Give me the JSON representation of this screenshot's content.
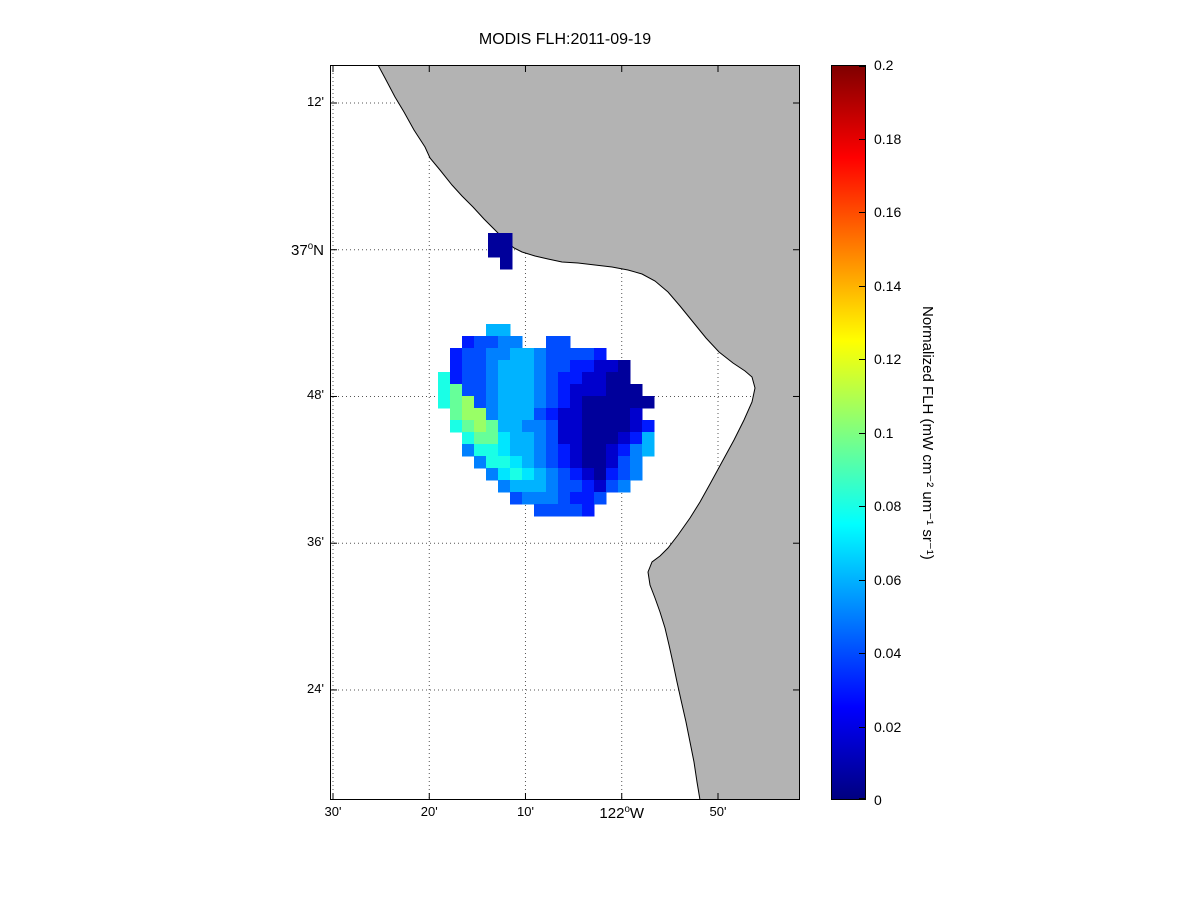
{
  "chart_data": {
    "type": "heatmap",
    "title": "MODIS FLH:2011-09-19",
    "colorbar_label": "Normalized FLH (mW cm⁻² um⁻¹ sr⁻¹)",
    "colormap": "jet",
    "clim": [
      0,
      0.2
    ],
    "xlim_lon": [
      -122.5052,
      -121.6913
    ],
    "ylim_lat": [
      36.25,
      37.2518
    ],
    "grid": "dotted",
    "land_color": "#b3b3b3",
    "ocean_color": "#ffffff",
    "xticks": [
      {
        "lon": -122.5,
        "pre": "30'",
        "sup": "",
        "post": "",
        "major": false
      },
      {
        "lon": -122.3333,
        "pre": "20'",
        "sup": "",
        "post": "",
        "major": false
      },
      {
        "lon": -122.1667,
        "pre": "10'",
        "sup": "",
        "post": "",
        "major": false
      },
      {
        "lon": -122.0,
        "pre": "122",
        "sup": "o",
        "post": "W",
        "major": true
      },
      {
        "lon": -121.8333,
        "pre": "50'",
        "sup": "",
        "post": "",
        "major": false
      }
    ],
    "yticks": [
      {
        "lat": 37.2,
        "pre": "12'",
        "sup": "",
        "post": "",
        "major": false
      },
      {
        "lat": 37.0,
        "pre": "37",
        "sup": "o",
        "post": "N",
        "major": true
      },
      {
        "lat": 36.8,
        "pre": "48'",
        "sup": "",
        "post": "",
        "major": false
      },
      {
        "lat": 36.6,
        "pre": "36'",
        "sup": "",
        "post": "",
        "major": false
      },
      {
        "lat": 36.4,
        "pre": "24'",
        "sup": "",
        "post": "",
        "major": false
      }
    ],
    "colorbar_ticks": [
      "0.2",
      "0.18",
      "0.16",
      "0.14",
      "0.12",
      "0.1",
      "0.08",
      "0.06",
      "0.04",
      "0.02",
      "0"
    ],
    "palette": {
      "1": {
        "value": 0.005,
        "color": "#00009b"
      },
      "2": {
        "value": 0.015,
        "color": "#0000cd"
      },
      "3": {
        "value": 0.03,
        "color": "#001aff"
      },
      "4": {
        "value": 0.04,
        "color": "#004dff"
      },
      "5": {
        "value": 0.05,
        "color": "#0080ff"
      },
      "6": {
        "value": 0.06,
        "color": "#00b3ff"
      },
      "7": {
        "value": 0.07,
        "color": "#00e6ff"
      },
      "8": {
        "value": 0.08,
        "color": "#1affe6"
      },
      "9": {
        "value": 0.095,
        "color": "#66ff99"
      },
      "a": {
        "value": 0.105,
        "color": "#99ff66"
      }
    },
    "heatmap_blocks": [
      {
        "name": "offshore-bloom",
        "origin_lon": -122.3182,
        "origin_lat": 36.8988,
        "dlon": 0.020779,
        "dlat": 0.016355,
        "rows": [
          "....66............",
          "..34455..44.......",
          ".3445566544443....",
          ".344566654433221..",
          "8344566654332211..",
          "89445666543222111.",
          "89a456665432111111",
          ".9aa5666432211112.",
          ".89a96655422111123",
          "..8997665422111236",
          "..5887665432112356",
          "...58876543211245.",
          "....5787654321345.",
          ".....56665443245..",
          "......45554334....",
          "........44443....."
        ]
      },
      {
        "name": "coastal-patch",
        "origin_lon": -122.2316,
        "origin_lat": 37.0228,
        "dlon": 0.020779,
        "dlat": 0.016355,
        "rows": [
          "11",
          "11",
          ".1"
        ]
      }
    ]
  }
}
